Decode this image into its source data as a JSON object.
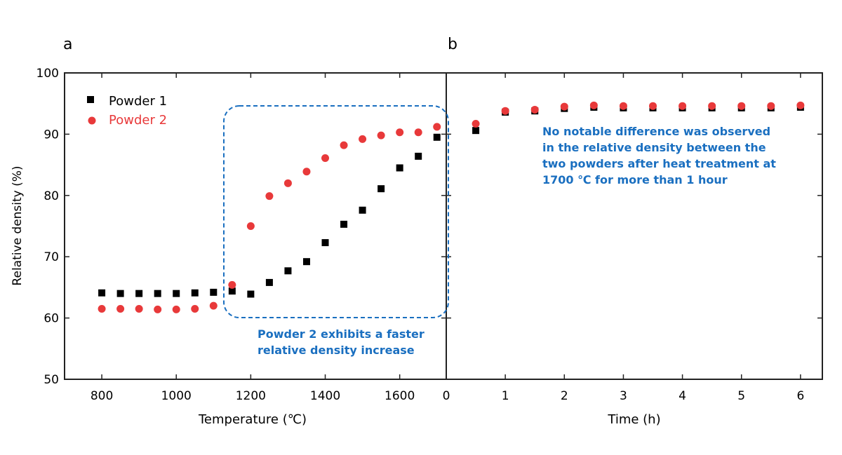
{
  "chart_data": [
    {
      "panel_label": "a",
      "type": "scatter",
      "xlabel": "Temperature (℃)",
      "ylabel": "Relative density (%)",
      "xlim": [
        700,
        1725
      ],
      "ylim": [
        50,
        100
      ],
      "xticks": [
        800,
        1000,
        1200,
        1400,
        1600
      ],
      "yticks": [
        50,
        60,
        70,
        80,
        90,
        100
      ],
      "grid": false,
      "legend_position": "top-left",
      "x": [
        800,
        850,
        900,
        950,
        1000,
        1050,
        1100,
        1150,
        1200,
        1250,
        1300,
        1350,
        1400,
        1450,
        1500,
        1550,
        1600,
        1650,
        1700
      ],
      "series": [
        {
          "name": "Powder 1",
          "color": "#000000",
          "marker": "square",
          "values": [
            64.1,
            64.0,
            64.0,
            64.0,
            64.0,
            64.1,
            64.2,
            64.4,
            63.9,
            65.8,
            67.7,
            69.2,
            72.3,
            75.3,
            77.6,
            81.1,
            84.5,
            86.4,
            89.5
          ]
        },
        {
          "name": "Powder 2",
          "color": "#e8393a",
          "marker": "circle",
          "values": [
            61.5,
            61.5,
            61.5,
            61.4,
            61.4,
            61.5,
            62.0,
            65.4,
            75.0,
            79.9,
            82.0,
            83.9,
            86.1,
            88.2,
            89.2,
            89.8,
            90.3,
            90.3,
            91.2
          ]
        }
      ],
      "annotation": {
        "lines": [
          "Powder 2 exhibits a faster",
          "relative density increase"
        ],
        "color": "#1a6fc0"
      }
    },
    {
      "panel_label": "b",
      "type": "scatter",
      "xlabel": "Time (h)",
      "xlim": [
        0,
        6.37
      ],
      "ylim": [
        50,
        100
      ],
      "xticks": [
        0,
        1,
        2,
        3,
        4,
        5,
        6
      ],
      "grid": false,
      "x": [
        0.5,
        1,
        1.5,
        2,
        2.5,
        3,
        3.5,
        4,
        4.5,
        5,
        5.5,
        6
      ],
      "series": [
        {
          "name": "Powder 1",
          "color": "#000000",
          "marker": "square",
          "values": [
            90.6,
            93.6,
            93.8,
            94.2,
            94.4,
            94.3,
            94.3,
            94.3,
            94.3,
            94.3,
            94.3,
            94.4
          ]
        },
        {
          "name": "Powder 2",
          "color": "#e8393a",
          "marker": "circle",
          "values": [
            91.7,
            93.8,
            94.0,
            94.5,
            94.7,
            94.6,
            94.6,
            94.6,
            94.6,
            94.6,
            94.6,
            94.7
          ]
        }
      ],
      "annotation": {
        "lines": [
          "No notable difference was observed",
          "in the relative density between the",
          "two powders after heat treatment at",
          "1700 ℃ for more than 1 hour"
        ],
        "color": "#1a6fc0"
      }
    }
  ]
}
